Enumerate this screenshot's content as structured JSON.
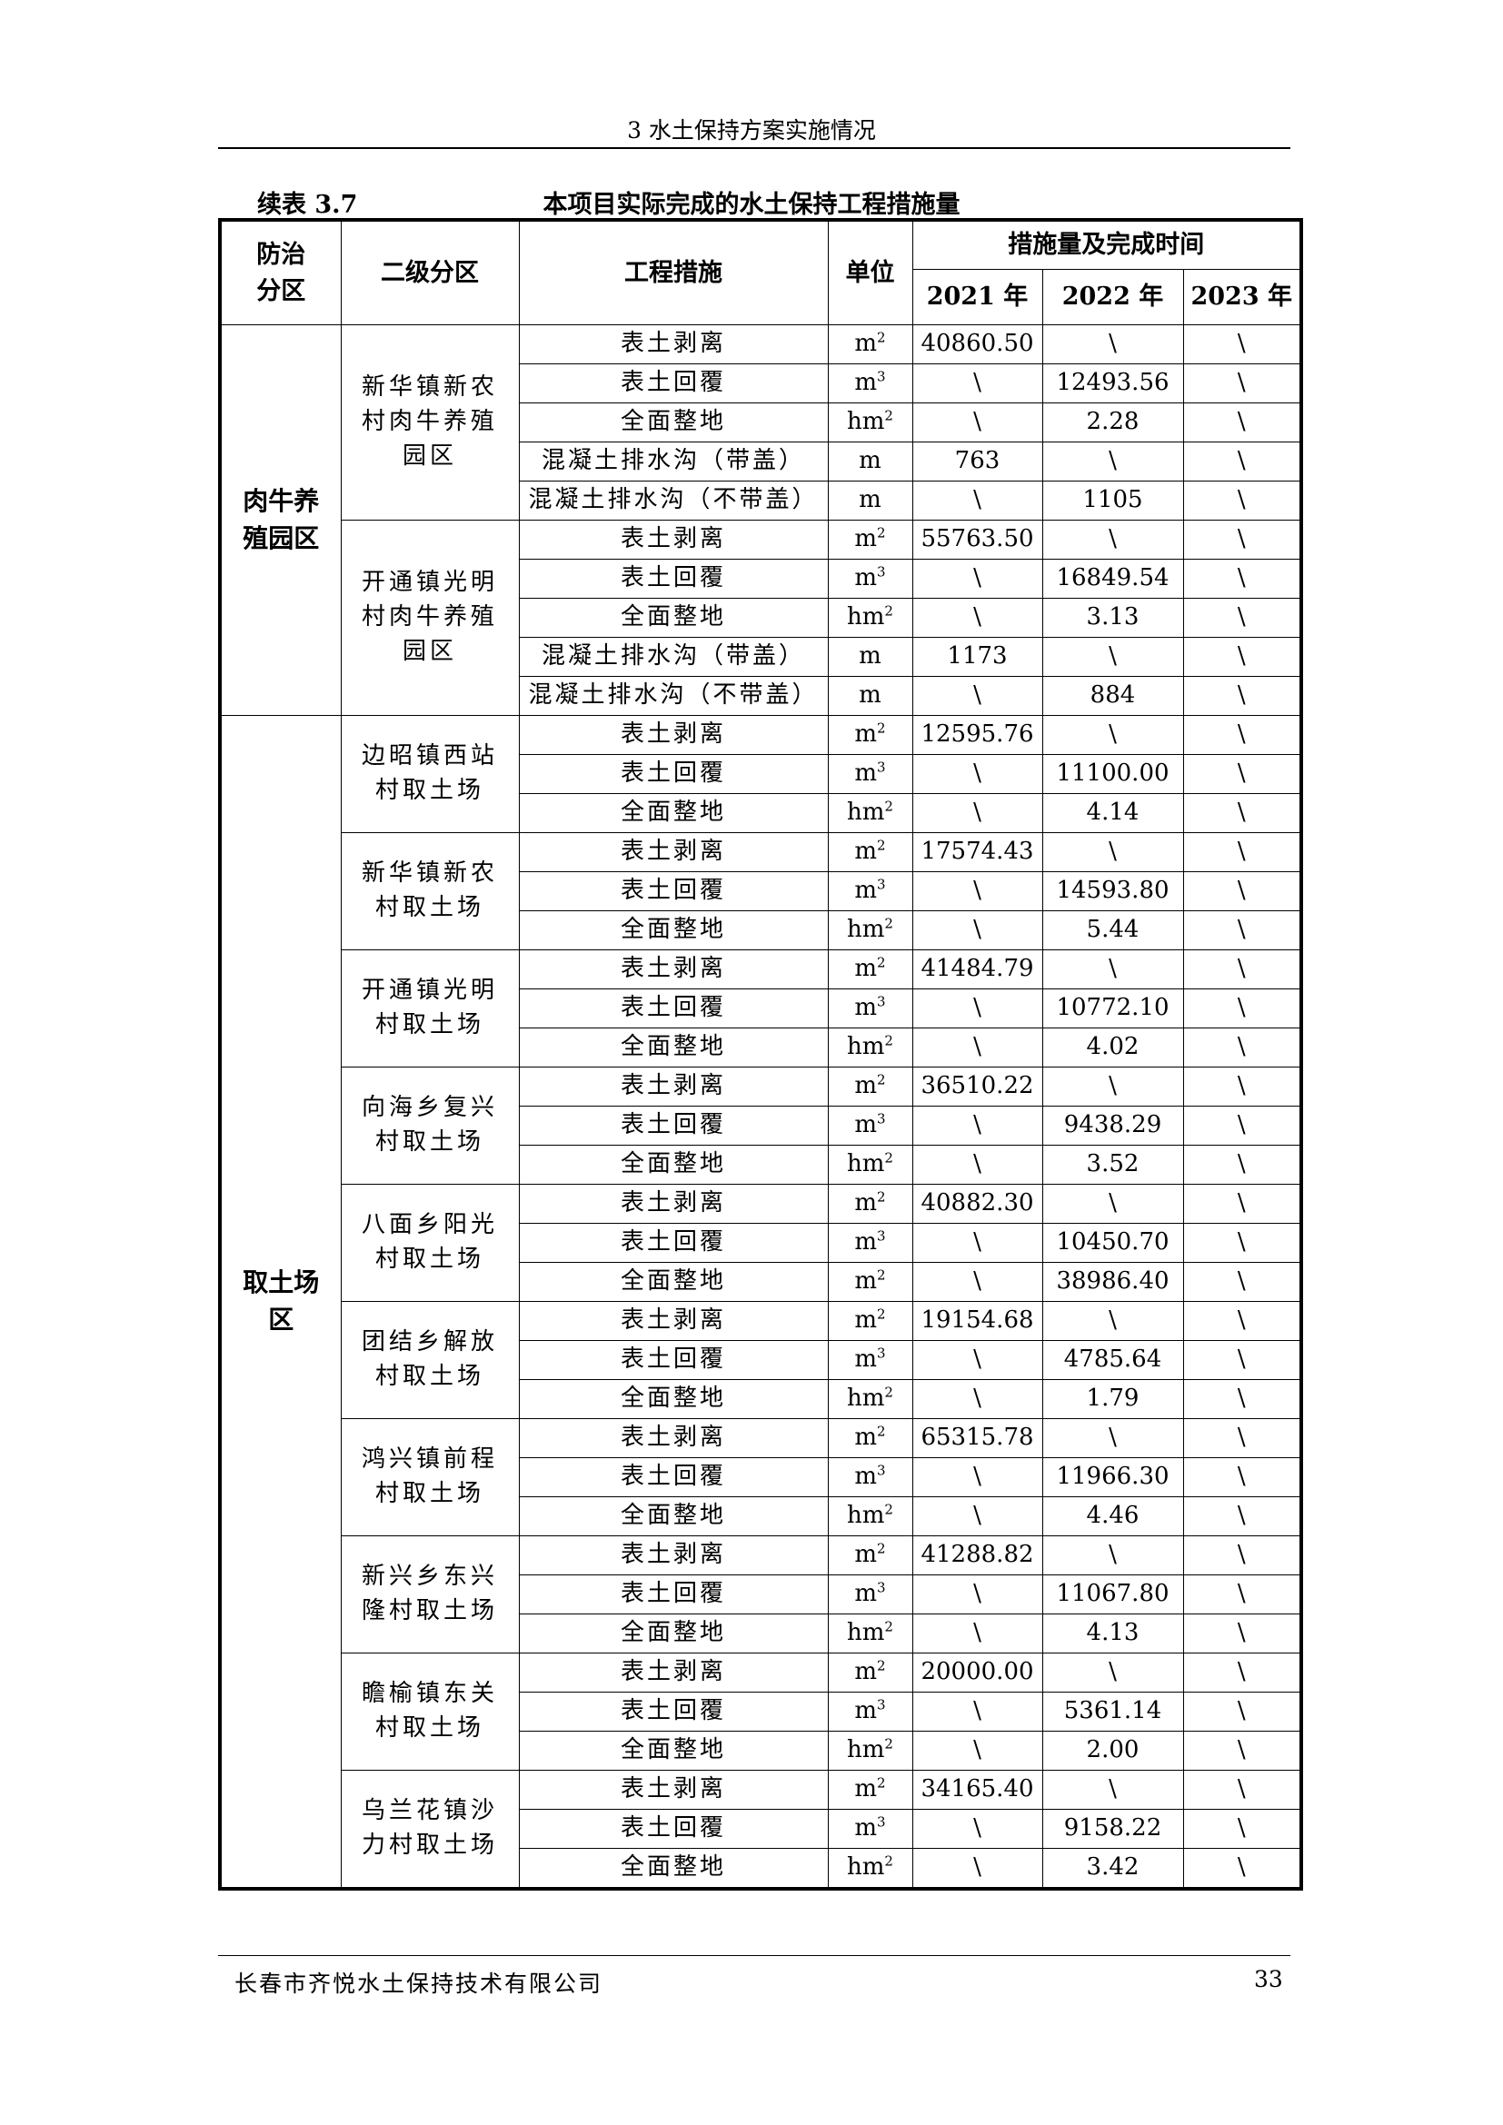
{
  "header": {
    "chapter": "3  水土保持方案实施情况"
  },
  "caption": {
    "number": "续表 3.7",
    "title": "本项目实际完成的水土保持工程措施量"
  },
  "table": {
    "columns": {
      "zone": "防治分区",
      "subzone": "二级分区",
      "measure": "工程措施",
      "unit": "单位",
      "group": "措施量及完成时间",
      "years": [
        "2021 年",
        "2022 年",
        "2023 年"
      ]
    },
    "zones": [
      {
        "name": "肉牛养殖园区",
        "subzones": [
          {
            "name": "新华镇新农村肉牛养殖园区",
            "rows": [
              [
                "表土剥离",
                "m²",
                "40860.50",
                "\\",
                "\\"
              ],
              [
                "表土回覆",
                "m³",
                "\\",
                "12493.56",
                "\\"
              ],
              [
                "全面整地",
                "hm²",
                "\\",
                "2.28",
                "\\"
              ],
              [
                "混凝土排水沟（带盖）",
                "m",
                "763",
                "\\",
                "\\"
              ],
              [
                "混凝土排水沟（不带盖）",
                "m",
                "\\",
                "1105",
                "\\"
              ]
            ]
          },
          {
            "name": "开通镇光明村肉牛养殖园区",
            "rows": [
              [
                "表土剥离",
                "m²",
                "55763.50",
                "\\",
                "\\"
              ],
              [
                "表土回覆",
                "m³",
                "\\",
                "16849.54",
                "\\"
              ],
              [
                "全面整地",
                "hm²",
                "\\",
                "3.13",
                "\\"
              ],
              [
                "混凝土排水沟（带盖）",
                "m",
                "1173",
                "\\",
                "\\"
              ],
              [
                "混凝土排水沟（不带盖）",
                "m",
                "\\",
                "884",
                "\\"
              ]
            ]
          }
        ]
      },
      {
        "name": "取土场区",
        "subzones": [
          {
            "name": "边昭镇西站村取土场",
            "rows": [
              [
                "表土剥离",
                "m²",
                "12595.76",
                "\\",
                "\\"
              ],
              [
                "表土回覆",
                "m³",
                "\\",
                "11100.00",
                "\\"
              ],
              [
                "全面整地",
                "hm²",
                "\\",
                "4.14",
                "\\"
              ]
            ]
          },
          {
            "name": "新华镇新农村取土场",
            "rows": [
              [
                "表土剥离",
                "m²",
                "17574.43",
                "\\",
                "\\"
              ],
              [
                "表土回覆",
                "m³",
                "\\",
                "14593.80",
                "\\"
              ],
              [
                "全面整地",
                "hm²",
                "\\",
                "5.44",
                "\\"
              ]
            ]
          },
          {
            "name": "开通镇光明村取土场",
            "rows": [
              [
                "表土剥离",
                "m²",
                "41484.79",
                "\\",
                "\\"
              ],
              [
                "表土回覆",
                "m³",
                "\\",
                "10772.10",
                "\\"
              ],
              [
                "全面整地",
                "hm²",
                "\\",
                "4.02",
                "\\"
              ]
            ]
          },
          {
            "name": "向海乡复兴村取土场",
            "rows": [
              [
                "表土剥离",
                "m²",
                "36510.22",
                "\\",
                "\\"
              ],
              [
                "表土回覆",
                "m³",
                "\\",
                "9438.29",
                "\\"
              ],
              [
                "全面整地",
                "hm²",
                "\\",
                "3.52",
                "\\"
              ]
            ]
          },
          {
            "name": "八面乡阳光村取土场",
            "rows": [
              [
                "表土剥离",
                "m²",
                "40882.30",
                "\\",
                "\\"
              ],
              [
                "表土回覆",
                "m³",
                "\\",
                "10450.70",
                "\\"
              ],
              [
                "全面整地",
                "m²",
                "\\",
                "38986.40",
                "\\"
              ]
            ]
          },
          {
            "name": "团结乡解放村取土场",
            "rows": [
              [
                "表土剥离",
                "m²",
                "19154.68",
                "\\",
                "\\"
              ],
              [
                "表土回覆",
                "m³",
                "\\",
                "4785.64",
                "\\"
              ],
              [
                "全面整地",
                "hm²",
                "\\",
                "1.79",
                "\\"
              ]
            ]
          },
          {
            "name": "鸿兴镇前程村取土场",
            "rows": [
              [
                "表土剥离",
                "m²",
                "65315.78",
                "\\",
                "\\"
              ],
              [
                "表土回覆",
                "m³",
                "\\",
                "11966.30",
                "\\"
              ],
              [
                "全面整地",
                "hm²",
                "\\",
                "4.46",
                "\\"
              ]
            ]
          },
          {
            "name": "新兴乡东兴隆村取土场",
            "rows": [
              [
                "表土剥离",
                "m²",
                "41288.82",
                "\\",
                "\\"
              ],
              [
                "表土回覆",
                "m³",
                "\\",
                "11067.80",
                "\\"
              ],
              [
                "全面整地",
                "hm²",
                "\\",
                "4.13",
                "\\"
              ]
            ]
          },
          {
            "name": "瞻榆镇东关村取土场",
            "rows": [
              [
                "表土剥离",
                "m²",
                "20000.00",
                "\\",
                "\\"
              ],
              [
                "表土回覆",
                "m³",
                "\\",
                "5361.14",
                "\\"
              ],
              [
                "全面整地",
                "hm²",
                "\\",
                "2.00",
                "\\"
              ]
            ]
          },
          {
            "name": "乌兰花镇沙力村取土场",
            "rows": [
              [
                "表土剥离",
                "m²",
                "34165.40",
                "\\",
                "\\"
              ],
              [
                "表土回覆",
                "m³",
                "\\",
                "9158.22",
                "\\"
              ],
              [
                "全面整地",
                "hm²",
                "\\",
                "3.42",
                "\\"
              ]
            ]
          }
        ]
      }
    ]
  },
  "footer": {
    "company": "长春市齐悦水土保持技术有限公司",
    "page": "33"
  }
}
